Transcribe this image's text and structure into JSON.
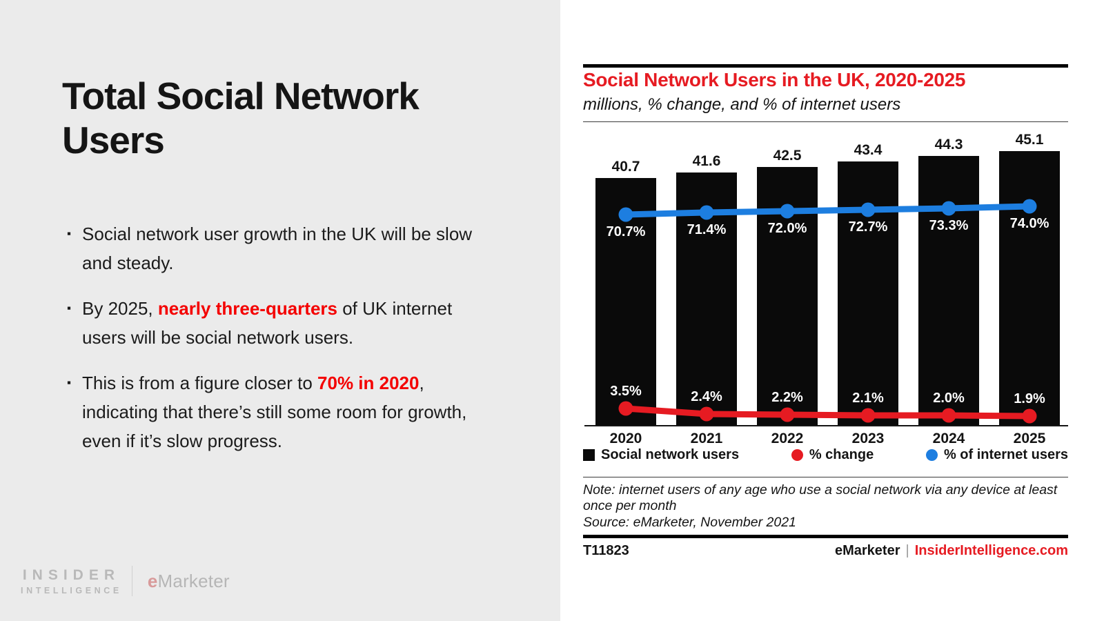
{
  "slide": {
    "title": "Total Social Network Users",
    "bullet_marker": "▪",
    "bullets": [
      {
        "pre": "Social network user growth in the UK will be slow and steady.",
        "red": "",
        "post": ""
      },
      {
        "pre": "By 2025, ",
        "red": "nearly three-quarters",
        "post": " of UK internet users will be social network users."
      },
      {
        "pre": "This is from a figure closer to ",
        "red": "70% in 2020",
        "post": ", indicating that there’s still some room for growth, even if it’s slow progress."
      }
    ],
    "brand_footer": {
      "insider_top": "INSIDER",
      "insider_bottom": "INTELLIGENCE",
      "emarketer_e": "e",
      "emarketer_rest": "Marketer"
    }
  },
  "chart": {
    "title": "Social Network Users in the UK, 2020-2025",
    "subtitle": "millions, % change, and % of internet users",
    "legend": [
      {
        "label": "Social network users",
        "shape": "square",
        "color": "#0a0a0a"
      },
      {
        "label": "% change",
        "shape": "circle",
        "color": "#e61b22"
      },
      {
        "label": "% of internet users",
        "shape": "circle",
        "color": "#1d7ee0"
      }
    ],
    "note": "Note: internet users of any age who use a social network via any device at least once per month",
    "source": "Source: eMarketer, November 2021",
    "chart_id": "T11823",
    "footer_brand": "eMarketer",
    "footer_sep": "|",
    "footer_site": "InsiderIntelligence.com"
  },
  "chart_data": {
    "type": "bar+line combo",
    "categories": [
      "2020",
      "2021",
      "2022",
      "2023",
      "2024",
      "2025"
    ],
    "series": [
      {
        "name": "Social network users",
        "type": "bar",
        "color": "#0a0a0a",
        "unit": "millions",
        "values": [
          40.7,
          41.6,
          42.5,
          43.4,
          44.3,
          45.1
        ],
        "labels": [
          "40.7",
          "41.6",
          "42.5",
          "43.4",
          "44.3",
          "45.1"
        ]
      },
      {
        "name": "% change",
        "type": "line",
        "color": "#e61b22",
        "values": [
          3.5,
          2.4,
          2.2,
          2.1,
          2.0,
          1.9
        ],
        "labels": [
          "3.5%",
          "2.4%",
          "2.2%",
          "2.1%",
          "2.0%",
          "1.9%"
        ]
      },
      {
        "name": "% of internet users",
        "type": "line",
        "color": "#1d7ee0",
        "values": [
          70.7,
          71.4,
          72.0,
          72.7,
          73.3,
          74.0
        ],
        "labels": [
          "70.7%",
          "71.4%",
          "72.0%",
          "72.7%",
          "73.3%",
          "74.0%"
        ]
      }
    ],
    "title": "Social Network Users in the UK, 2020-2025",
    "xlabel": "",
    "ylabel": "millions",
    "ylim": [
      0,
      48
    ],
    "grid": false,
    "legend_position": "bottom"
  },
  "colors": {
    "left_background": "#ebebeb",
    "accent_red_chart": "#e61b22",
    "accent_red_bullets": "#f40000",
    "line_blue": "#1d7ee0",
    "bar_black": "#0a0a0a",
    "muted_brand_gray": "#b9b9b9",
    "muted_brand_pink": "#d89a9a"
  }
}
